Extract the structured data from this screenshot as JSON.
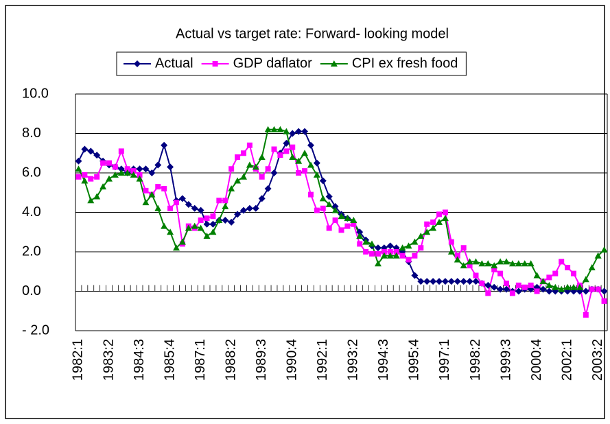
{
  "chart_data": {
    "type": "line",
    "title": "Actual vs target rate: Forward- looking model",
    "categories": [
      "1982:1",
      null,
      null,
      null,
      null,
      "1983:2",
      null,
      null,
      null,
      null,
      "1984:3",
      null,
      null,
      null,
      null,
      "1985:4",
      null,
      null,
      null,
      null,
      "1987:1",
      null,
      null,
      null,
      null,
      "1988:2",
      null,
      null,
      null,
      null,
      "1989:3",
      null,
      null,
      null,
      null,
      "1990:4",
      null,
      null,
      null,
      null,
      "1992:1",
      null,
      null,
      null,
      null,
      "1993:2",
      null,
      null,
      null,
      null,
      "1994:3",
      null,
      null,
      null,
      null,
      "1995:4",
      null,
      null,
      null,
      null,
      "1997:1",
      null,
      null,
      null,
      null,
      "1998:2",
      null,
      null,
      null,
      null,
      "1999:3",
      null,
      null,
      null,
      null,
      "2000:4",
      null,
      null,
      null,
      null,
      "2002:1",
      null,
      null,
      null,
      null,
      "2003:2",
      null
    ],
    "series": [
      {
        "name": "Actual",
        "color": "#000080",
        "marker": "diamond",
        "values": [
          6.6,
          7.2,
          7.1,
          6.9,
          6.6,
          6.4,
          6.3,
          6.2,
          6.0,
          6.2,
          6.2,
          6.2,
          6.0,
          6.4,
          7.4,
          6.3,
          4.6,
          4.7,
          4.4,
          4.2,
          4.1,
          3.4,
          3.4,
          3.6,
          3.6,
          3.5,
          3.9,
          4.1,
          4.2,
          4.2,
          4.7,
          5.2,
          6.0,
          7.0,
          7.5,
          8.0,
          8.1,
          8.1,
          7.4,
          6.5,
          5.6,
          4.8,
          4.3,
          3.9,
          3.7,
          3.5,
          3.0,
          2.6,
          2.3,
          2.2,
          2.2,
          2.3,
          2.2,
          2.0,
          1.5,
          0.8,
          0.5,
          0.5,
          0.5,
          0.5,
          0.5,
          0.5,
          0.5,
          0.5,
          0.5,
          0.5,
          0.4,
          0.3,
          0.2,
          0.1,
          0.1,
          0.0,
          0.0,
          0.1,
          0.1,
          0.2,
          0.1,
          0.0,
          0.0,
          0.0,
          0.0,
          0.0,
          0.0,
          0.0,
          0.1,
          0.1,
          0.0
        ]
      },
      {
        "name": "GDP daflator",
        "color": "#ff00ff",
        "marker": "square",
        "values": [
          5.8,
          5.9,
          5.7,
          5.8,
          6.5,
          6.5,
          6.3,
          7.1,
          6.2,
          6.1,
          5.9,
          5.1,
          4.9,
          5.3,
          5.2,
          4.2,
          4.5,
          2.4,
          3.3,
          3.2,
          3.6,
          3.7,
          3.8,
          4.6,
          4.6,
          6.2,
          6.8,
          7.0,
          7.4,
          6.2,
          5.8,
          6.2,
          7.2,
          6.9,
          7.1,
          7.3,
          6.0,
          6.1,
          4.9,
          4.1,
          4.2,
          3.2,
          3.6,
          3.1,
          3.3,
          3.4,
          2.4,
          2.0,
          1.9,
          1.9,
          2.0,
          2.0,
          2.0,
          1.8,
          1.6,
          1.8,
          2.2,
          3.4,
          3.5,
          3.9,
          4.0,
          2.5,
          1.8,
          2.2,
          1.3,
          0.8,
          0.4,
          -0.1,
          1.1,
          0.9,
          0.4,
          -0.1,
          0.3,
          0.2,
          0.3,
          0.0,
          0.5,
          0.7,
          0.9,
          1.5,
          1.2,
          0.9,
          0.3,
          -1.2,
          0.1,
          0.1,
          -0.5
        ]
      },
      {
        "name": "CPI ex fresh food",
        "color": "#008000",
        "marker": "triangle",
        "values": [
          6.2,
          5.6,
          4.6,
          4.8,
          5.3,
          5.7,
          5.9,
          6.0,
          6.0,
          5.9,
          5.7,
          4.5,
          4.9,
          4.2,
          3.3,
          3.0,
          2.2,
          2.5,
          3.2,
          3.3,
          3.2,
          2.8,
          3.0,
          3.6,
          4.3,
          5.2,
          5.6,
          5.8,
          6.4,
          6.3,
          6.8,
          8.2,
          8.2,
          8.2,
          8.1,
          6.8,
          6.6,
          7.0,
          6.4,
          5.9,
          4.7,
          4.4,
          4.1,
          3.8,
          3.7,
          3.6,
          2.8,
          2.5,
          2.4,
          1.4,
          1.8,
          1.8,
          1.8,
          2.2,
          2.3,
          2.5,
          2.8,
          3.0,
          3.2,
          3.5,
          3.7,
          2.0,
          1.6,
          1.3,
          1.5,
          1.5,
          1.4,
          1.4,
          1.3,
          1.5,
          1.5,
          1.4,
          1.4,
          1.4,
          1.4,
          0.8,
          0.5,
          0.3,
          0.2,
          0.1,
          0.2,
          0.2,
          0.2,
          0.6,
          1.2,
          1.8,
          2.1
        ]
      }
    ],
    "ylim": [
      -2,
      10
    ],
    "yticks": [
      {
        "value": -2,
        "label": "- 2.0"
      },
      {
        "value": 0,
        "label": "0.0"
      },
      {
        "value": 2,
        "label": "2.0"
      },
      {
        "value": 4,
        "label": "4.0"
      },
      {
        "value": 6,
        "label": "6.0"
      },
      {
        "value": 8,
        "label": "8.0"
      },
      {
        "value": 10,
        "label": "10.0"
      }
    ],
    "grid": true,
    "legend": "top"
  }
}
